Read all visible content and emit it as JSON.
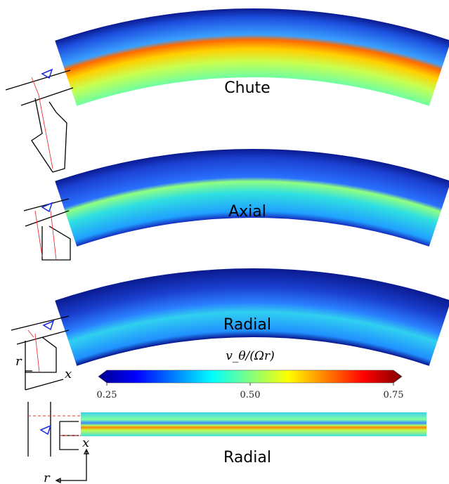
{
  "panels": [
    {
      "label": "Chute"
    },
    {
      "label": "Axial"
    },
    {
      "label": "Radial"
    },
    {
      "label": "Radial"
    }
  ],
  "colorbar": {
    "label": "v_θ/(Ωr)",
    "min": 0.25,
    "max": 0.75,
    "ticks": [
      0.25,
      {
        "value": 0.5,
        "label": "0.50"
      },
      0.75
    ]
  },
  "schematic_axes": {
    "r": "r",
    "x": "x"
  }
}
